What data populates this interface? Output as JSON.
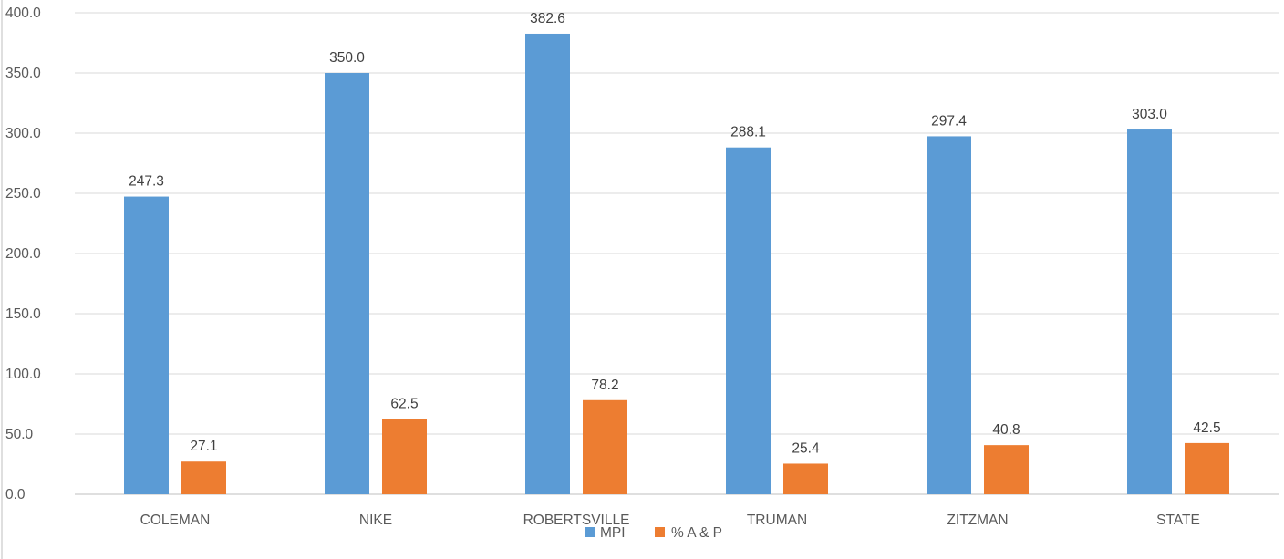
{
  "chart_data": {
    "type": "bar",
    "categories": [
      "COLEMAN",
      "NIKE",
      "ROBERTSVILLE",
      "TRUMAN",
      "ZITZMAN",
      "STATE"
    ],
    "series": [
      {
        "name": "MPI",
        "color": "#5B9BD5",
        "values": [
          247.3,
          350.0,
          382.6,
          288.1,
          297.4,
          303.0
        ]
      },
      {
        "name": "% A & P",
        "color": "#ED7D31",
        "values": [
          27.1,
          62.5,
          78.2,
          25.4,
          40.8,
          42.5
        ]
      }
    ],
    "data_labels": [
      [
        "247.3",
        "350.0",
        "382.6",
        "288.1",
        "297.4",
        "303.0"
      ],
      [
        "27.1",
        "62.5",
        "78.2",
        "25.4",
        "40.8",
        "42.5"
      ]
    ],
    "y_ticks": [
      "0.0",
      "50.0",
      "100.0",
      "150.0",
      "200.0",
      "250.0",
      "300.0",
      "350.0",
      "400.0"
    ],
    "ylim": [
      0,
      400
    ],
    "grid": true,
    "legend_position": "bottom",
    "title": "",
    "xlabel": "",
    "ylabel": ""
  }
}
